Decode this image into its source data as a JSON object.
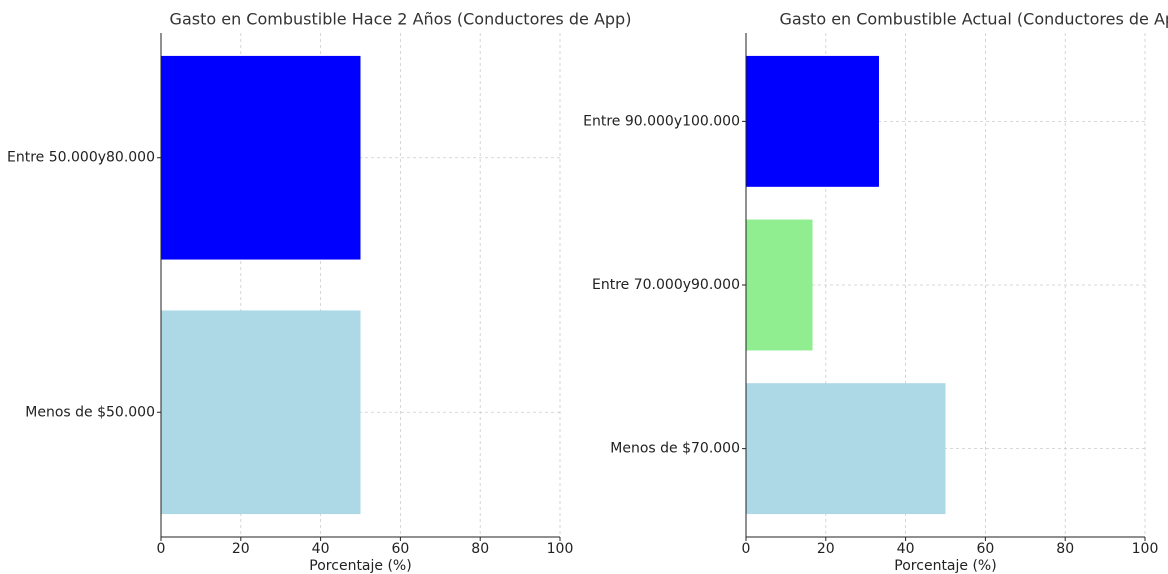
{
  "chart_data": [
    {
      "type": "bar",
      "orientation": "horizontal",
      "title": "Gasto en Combustible Hace 2 Años (Conductores de App)",
      "xlabel": "Porcentaje (%)",
      "categories": [
        "Menos de $50.000",
        "Entre 50.000y80.000"
      ],
      "values": [
        50,
        50
      ],
      "colors": [
        "#add8e6",
        "#0000ff"
      ],
      "xlim": [
        0,
        100
      ],
      "xticks": [
        0,
        20,
        40,
        60,
        80,
        100
      ],
      "grid": true
    },
    {
      "type": "bar",
      "orientation": "horizontal",
      "title": "Gasto en Combustible Actual (Conductores de App)",
      "xlabel": "Porcentaje (%)",
      "categories": [
        "Menos de $70.000",
        "Entre 70.000y90.000",
        "Entre 90.000y100.000"
      ],
      "values": [
        50,
        16.67,
        33.33
      ],
      "colors": [
        "#add8e6",
        "#90ee90",
        "#0000ff"
      ],
      "xlim": [
        0,
        100
      ],
      "xticks": [
        0,
        20,
        40,
        60,
        80,
        100
      ],
      "grid": true
    }
  ]
}
